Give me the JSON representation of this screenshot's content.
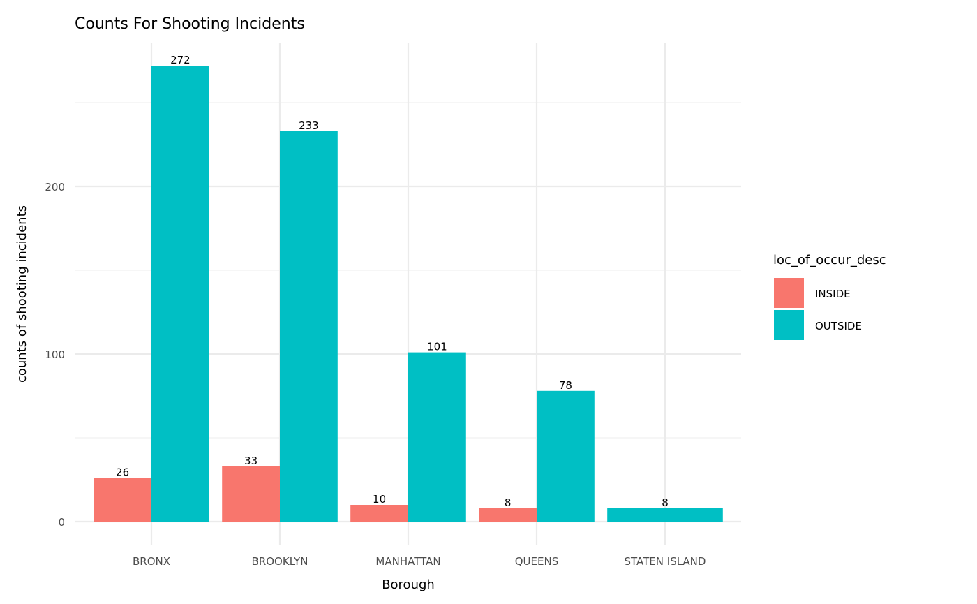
{
  "chart_data": {
    "type": "bar",
    "title": "Counts For Shooting Incidents",
    "xlabel": "Borough",
    "ylabel": "counts of shooting incidents",
    "categories": [
      "BRONX",
      "BROOKLYN",
      "MANHATTAN",
      "QUEENS",
      "STATEN ISLAND"
    ],
    "series": [
      {
        "name": "INSIDE",
        "color": "#F8766D",
        "values": [
          26,
          33,
          10,
          8,
          null
        ]
      },
      {
        "name": "OUTSIDE",
        "color": "#00BFC4",
        "values": [
          272,
          233,
          101,
          78,
          8
        ]
      }
    ],
    "ylim": [
      0,
      285.6
    ],
    "yticks": [
      0,
      100,
      200
    ],
    "grid": true,
    "legend": {
      "title": "loc_of_occur_desc",
      "position": "right"
    },
    "data_labels": true
  }
}
